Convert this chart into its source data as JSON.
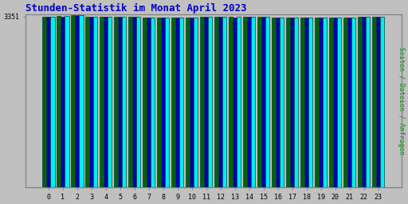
{
  "title": "Stunden-Statistik im Monat April 2023",
  "title_color": "#0000cc",
  "ylabel": "Seiten / Dateien / Anfragen",
  "ylabel_color": "#008800",
  "background_color": "#c0c0c0",
  "plot_bg_color": "#c0c0c0",
  "bar_colors": [
    "#006400",
    "#0000aa",
    "#00eeee"
  ],
  "bar_edge_color": "#004040",
  "categories": [
    0,
    1,
    2,
    3,
    4,
    5,
    6,
    7,
    8,
    9,
    10,
    11,
    12,
    13,
    14,
    15,
    16,
    17,
    18,
    19,
    20,
    21,
    22,
    23
  ],
  "series1": [
    3351,
    3360,
    3376,
    3354,
    3346,
    3346,
    3347,
    3331,
    3336,
    3338,
    3333,
    3350,
    3349,
    3343,
    3346,
    3345,
    3337,
    3331,
    3331,
    3333,
    3338,
    3332,
    3344,
    3351
  ],
  "series2": [
    3349,
    3357,
    3373,
    3352,
    3344,
    3344,
    3345,
    3329,
    3334,
    3336,
    3331,
    3348,
    3347,
    3341,
    3344,
    3343,
    3335,
    3329,
    3329,
    3331,
    3336,
    3330,
    3342,
    3349
  ],
  "series3": [
    3351,
    3360,
    3376,
    3354,
    3346,
    3346,
    3347,
    3331,
    3336,
    3338,
    3333,
    3350,
    3349,
    3343,
    3346,
    3345,
    3337,
    3331,
    3331,
    3333,
    3338,
    3332,
    3344,
    3351
  ],
  "ytick_value": 3351,
  "ytick_label": "3351",
  "ylim_min": 0,
  "ylim_max": 3390,
  "figsize": [
    5.12,
    2.56
  ],
  "dpi": 100
}
